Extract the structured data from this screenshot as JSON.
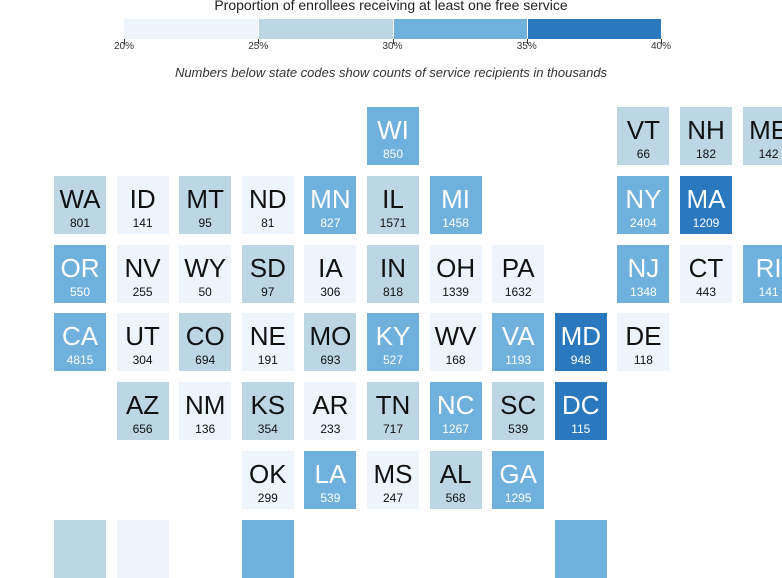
{
  "title": "Proportion of enrollees receiving at least one free service",
  "subtitle": "Numbers below state codes show counts of service recipients in thousands",
  "legend": {
    "bins": [
      {
        "from": 20,
        "to": 25,
        "color": "#edf4fc"
      },
      {
        "from": 25,
        "to": 30,
        "color": "#bdd6e3"
      },
      {
        "from": 30,
        "to": 35,
        "color": "#6fb0dd"
      },
      {
        "from": 35,
        "to": 40,
        "color": "#2a78be"
      }
    ],
    "labels": [
      "20%",
      "25%",
      "30%",
      "35%",
      "40%"
    ]
  },
  "states": [
    {
      "code": "WI",
      "count": "850",
      "bin": 2,
      "col": 5,
      "row": 0
    },
    {
      "code": "VT",
      "count": "66",
      "bin": 1,
      "col": 9,
      "row": 0
    },
    {
      "code": "NH",
      "count": "182",
      "bin": 1,
      "col": 10,
      "row": 0
    },
    {
      "code": "ME",
      "count": "142",
      "bin": 1,
      "col": 11,
      "row": 0
    },
    {
      "code": "WA",
      "count": "801",
      "bin": 1,
      "col": 0,
      "row": 1
    },
    {
      "code": "ID",
      "count": "141",
      "bin": 0,
      "col": 1,
      "row": 1
    },
    {
      "code": "MT",
      "count": "95",
      "bin": 1,
      "col": 2,
      "row": 1
    },
    {
      "code": "ND",
      "count": "81",
      "bin": 0,
      "col": 3,
      "row": 1
    },
    {
      "code": "MN",
      "count": "827",
      "bin": 2,
      "col": 4,
      "row": 1
    },
    {
      "code": "IL",
      "count": "1571",
      "bin": 1,
      "col": 5,
      "row": 1
    },
    {
      "code": "MI",
      "count": "1458",
      "bin": 2,
      "col": 6,
      "row": 1
    },
    {
      "code": "NY",
      "count": "2404",
      "bin": 2,
      "col": 9,
      "row": 1
    },
    {
      "code": "MA",
      "count": "1209",
      "bin": 3,
      "col": 10,
      "row": 1
    },
    {
      "code": "OR",
      "count": "550",
      "bin": 2,
      "col": 0,
      "row": 2
    },
    {
      "code": "NV",
      "count": "255",
      "bin": 0,
      "col": 1,
      "row": 2
    },
    {
      "code": "WY",
      "count": "50",
      "bin": 0,
      "col": 2,
      "row": 2
    },
    {
      "code": "SD",
      "count": "97",
      "bin": 1,
      "col": 3,
      "row": 2
    },
    {
      "code": "IA",
      "count": "306",
      "bin": 0,
      "col": 4,
      "row": 2
    },
    {
      "code": "IN",
      "count": "818",
      "bin": 1,
      "col": 5,
      "row": 2
    },
    {
      "code": "OH",
      "count": "1339",
      "bin": 0,
      "col": 6,
      "row": 2
    },
    {
      "code": "PA",
      "count": "1632",
      "bin": 0,
      "col": 7,
      "row": 2
    },
    {
      "code": "NJ",
      "count": "1348",
      "bin": 2,
      "col": 9,
      "row": 2
    },
    {
      "code": "CT",
      "count": "443",
      "bin": 0,
      "col": 10,
      "row": 2
    },
    {
      "code": "RI",
      "count": "141",
      "bin": 2,
      "col": 11,
      "row": 2
    },
    {
      "code": "CA",
      "count": "4815",
      "bin": 2,
      "col": 0,
      "row": 3
    },
    {
      "code": "UT",
      "count": "304",
      "bin": 0,
      "col": 1,
      "row": 3
    },
    {
      "code": "CO",
      "count": "694",
      "bin": 1,
      "col": 2,
      "row": 3
    },
    {
      "code": "NE",
      "count": "191",
      "bin": 0,
      "col": 3,
      "row": 3
    },
    {
      "code": "MO",
      "count": "693",
      "bin": 1,
      "col": 4,
      "row": 3
    },
    {
      "code": "KY",
      "count": "527",
      "bin": 2,
      "col": 5,
      "row": 3
    },
    {
      "code": "WV",
      "count": "168",
      "bin": 0,
      "col": 6,
      "row": 3
    },
    {
      "code": "VA",
      "count": "1193",
      "bin": 2,
      "col": 7,
      "row": 3
    },
    {
      "code": "MD",
      "count": "948",
      "bin": 3,
      "col": 8,
      "row": 3
    },
    {
      "code": "DE",
      "count": "118",
      "bin": 0,
      "col": 9,
      "row": 3
    },
    {
      "code": "AZ",
      "count": "656",
      "bin": 1,
      "col": 1,
      "row": 4
    },
    {
      "code": "NM",
      "count": "136",
      "bin": 0,
      "col": 2,
      "row": 4
    },
    {
      "code": "KS",
      "count": "354",
      "bin": 1,
      "col": 3,
      "row": 4
    },
    {
      "code": "AR",
      "count": "233",
      "bin": 0,
      "col": 4,
      "row": 4
    },
    {
      "code": "TN",
      "count": "717",
      "bin": 1,
      "col": 5,
      "row": 4
    },
    {
      "code": "NC",
      "count": "1267",
      "bin": 2,
      "col": 6,
      "row": 4
    },
    {
      "code": "SC",
      "count": "539",
      "bin": 1,
      "col": 7,
      "row": 4
    },
    {
      "code": "DC",
      "count": "115",
      "bin": 3,
      "col": 8,
      "row": 4
    },
    {
      "code": "OK",
      "count": "299",
      "bin": 0,
      "col": 3,
      "row": 5
    },
    {
      "code": "LA",
      "count": "539",
      "bin": 2,
      "col": 4,
      "row": 5
    },
    {
      "code": "MS",
      "count": "247",
      "bin": 0,
      "col": 5,
      "row": 5
    },
    {
      "code": "AL",
      "count": "568",
      "bin": 1,
      "col": 6,
      "row": 5
    },
    {
      "code": "GA",
      "count": "1295",
      "bin": 2,
      "col": 7,
      "row": 5
    }
  ],
  "partial_tiles": [
    {
      "bin": 1,
      "col": 0,
      "row": 6
    },
    {
      "bin": 0,
      "col": 1,
      "row": 6
    },
    {
      "bin": 2,
      "col": 3,
      "row": 6
    },
    {
      "bin": 2,
      "col": 8,
      "row": 6
    }
  ]
}
